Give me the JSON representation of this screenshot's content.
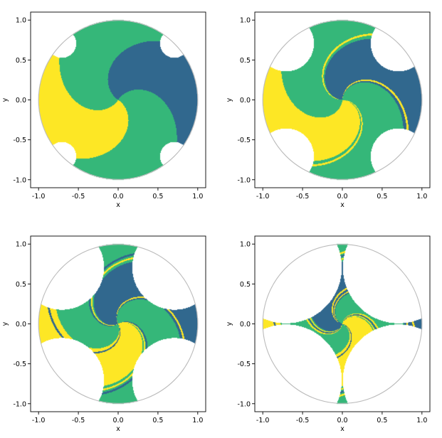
{
  "colors": {
    "yellow": "#fde725",
    "green": "#35b779",
    "blue": "#31688e",
    "boundary": "#bbbbbb",
    "axes": "#000000",
    "background": "#ffffff"
  },
  "chart_data": [
    {
      "type": "heatmap",
      "title": "",
      "xlabel": "x",
      "ylabel": "y",
      "xlim": [
        -1.1,
        1.1
      ],
      "ylim": [
        -1.1,
        1.1
      ],
      "xticks": [
        -1.0,
        -0.5,
        0.0,
        0.5,
        1.0
      ],
      "yticks": [
        1.0,
        0.5,
        0.0,
        -0.5,
        -1.0
      ],
      "xtick_labels": [
        "-1.0",
        "-0.5",
        "0.0",
        "0.5",
        "1.0"
      ],
      "ytick_labels": [
        "1.0",
        "0.5",
        "0.0",
        "-0.5",
        "-1.0"
      ],
      "disk_radius": 1.0,
      "hole_centers": [
        [
          0.707,
          0.707
        ],
        [
          -0.707,
          0.707
        ],
        [
          -0.707,
          -0.707
        ],
        [
          0.707,
          -0.707
        ]
      ],
      "hole_radius": 0.18,
      "swirl": 0.35,
      "stripes": 0,
      "grid": false
    },
    {
      "type": "heatmap",
      "title": "",
      "xlabel": "x",
      "ylabel": "y",
      "xlim": [
        -1.1,
        1.1
      ],
      "ylim": [
        -1.1,
        1.1
      ],
      "xticks": [
        -1.0,
        -0.5,
        0.0,
        0.5,
        1.0
      ],
      "yticks": [
        1.0,
        0.5,
        0.0,
        -0.5,
        -1.0
      ],
      "xtick_labels": [
        "-1.0",
        "-0.5",
        "0.0",
        "0.5",
        "1.0"
      ],
      "ytick_labels": [
        "1.0",
        "0.5",
        "0.0",
        "-0.5",
        "-1.0"
      ],
      "disk_radius": 1.0,
      "hole_centers": [
        [
          0.707,
          0.707
        ],
        [
          -0.707,
          0.707
        ],
        [
          -0.707,
          -0.707
        ],
        [
          0.707,
          -0.707
        ]
      ],
      "hole_radius": 0.35,
      "swirl": 0.45,
      "stripes": 1,
      "grid": false
    },
    {
      "type": "heatmap",
      "title": "",
      "xlabel": "x",
      "ylabel": "y",
      "xlim": [
        -1.1,
        1.1
      ],
      "ylim": [
        -1.1,
        1.1
      ],
      "xticks": [
        -1.0,
        -0.5,
        0.0,
        0.5,
        1.0
      ],
      "yticks": [
        1.0,
        0.5,
        0.0,
        -0.5,
        -1.0
      ],
      "xtick_labels": [
        "-1.0",
        "-0.5",
        "0.0",
        "0.5",
        "1.0"
      ],
      "ytick_labels": [
        "1.0",
        "0.5",
        "0.0",
        "-0.5",
        "-1.0"
      ],
      "disk_radius": 1.0,
      "hole_centers": [
        [
          0.707,
          0.707
        ],
        [
          -0.707,
          0.707
        ],
        [
          -0.707,
          -0.707
        ],
        [
          0.707,
          -0.707
        ]
      ],
      "hole_radius": 0.53,
      "swirl": 0.55,
      "stripes": 2,
      "grid": false
    },
    {
      "type": "heatmap",
      "title": "",
      "xlabel": "x",
      "ylabel": "y",
      "xlim": [
        -1.1,
        1.1
      ],
      "ylim": [
        -1.1,
        1.1
      ],
      "xticks": [
        -1.0,
        -0.5,
        0.0,
        0.5,
        1.0
      ],
      "yticks": [
        1.0,
        0.5,
        0.0,
        -0.5,
        -1.0
      ],
      "xtick_labels": [
        "-1.0",
        "-0.5",
        "0.0",
        "0.5",
        "1.0"
      ],
      "ytick_labels": [
        "1.0",
        "0.5",
        "0.0",
        "-0.5",
        "-1.0"
      ],
      "disk_radius": 1.0,
      "hole_centers": [
        [
          0.707,
          0.707
        ],
        [
          -0.707,
          0.707
        ],
        [
          -0.707,
          -0.707
        ],
        [
          0.707,
          -0.707
        ]
      ],
      "hole_radius": 0.7,
      "swirl": 0.7,
      "stripes": 3,
      "grid": false
    }
  ]
}
